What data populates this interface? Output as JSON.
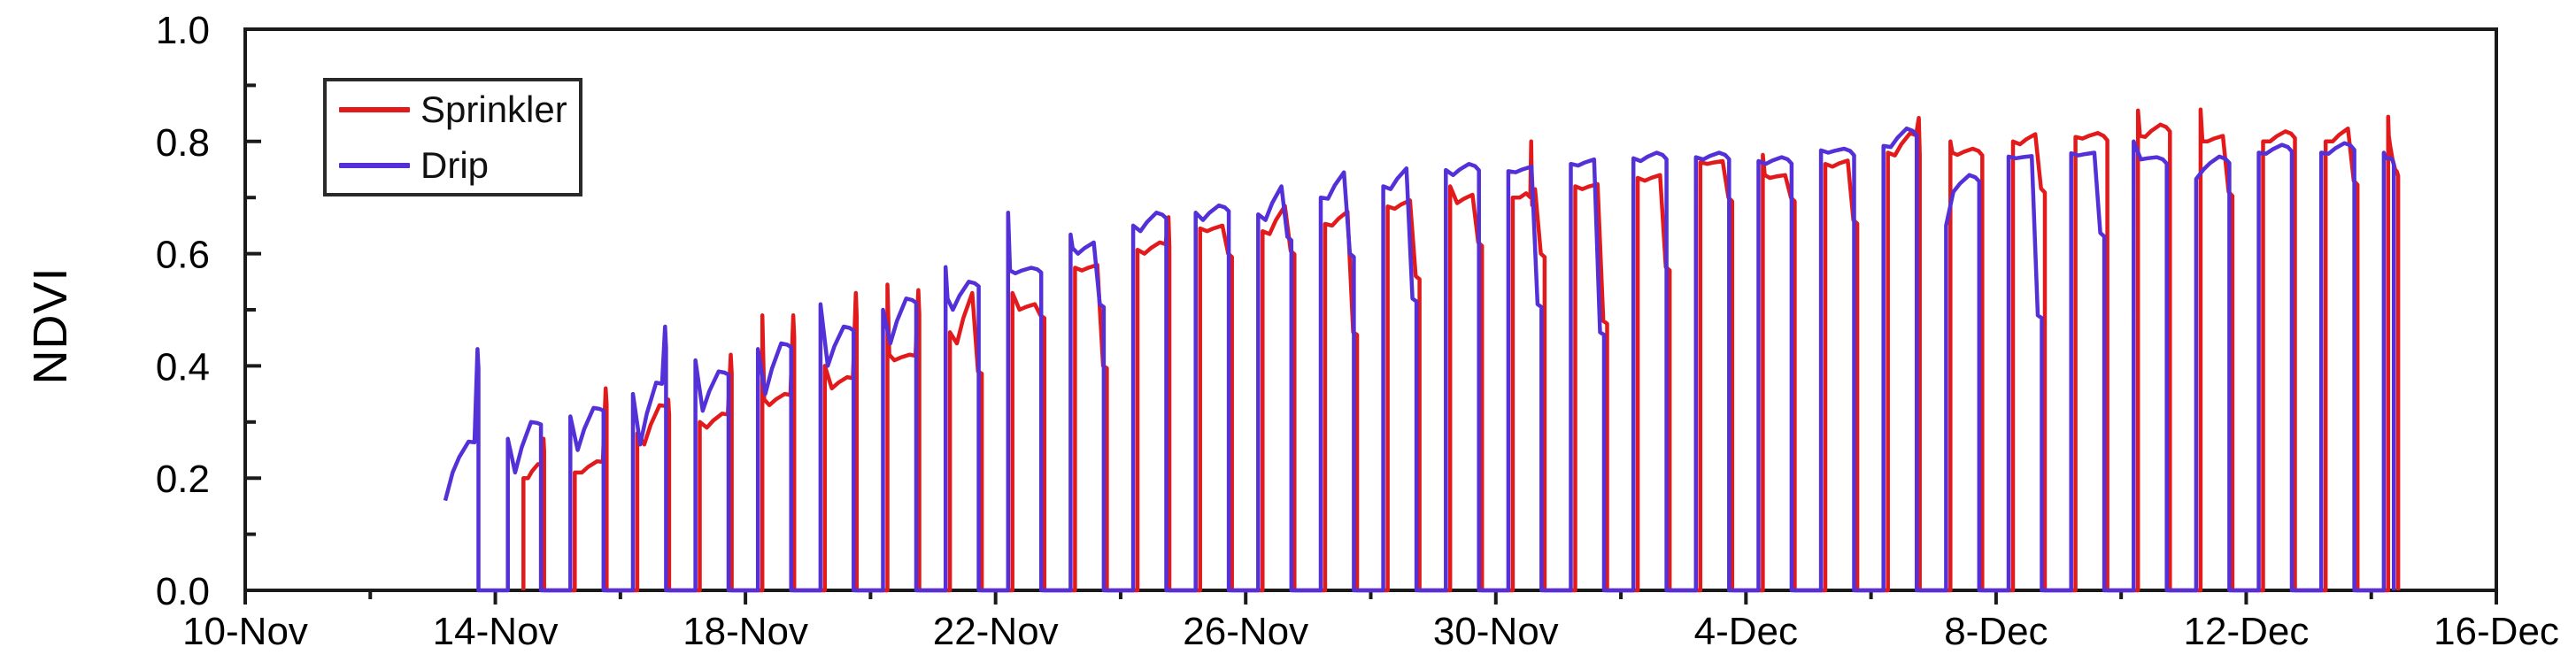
{
  "page": {
    "background": "#ffffff"
  },
  "chart_data": {
    "type": "line",
    "title": "",
    "xlabel": "",
    "ylabel": "NDVI",
    "ylim": [
      0.0,
      1.0
    ],
    "x_axis_days_total": 36,
    "grid": false,
    "legend_position": "top-left",
    "axis_color": "#1a1a1a",
    "tick_label_color": "#000000",
    "y_ticks": [
      {
        "label": "0.0",
        "v": 0.0
      },
      {
        "label": "0.2",
        "v": 0.2
      },
      {
        "label": "0.4",
        "v": 0.4
      },
      {
        "label": "0.6",
        "v": 0.6
      },
      {
        "label": "0.8",
        "v": 0.8
      },
      {
        "label": "1.0",
        "v": 1.0
      }
    ],
    "y_minor_ticks": [
      0.1,
      0.3,
      0.5,
      0.7,
      0.9
    ],
    "x_ticks": [
      {
        "label": "10-Nov",
        "day": 0
      },
      {
        "label": "14-Nov",
        "day": 4
      },
      {
        "label": "18-Nov",
        "day": 8
      },
      {
        "label": "22-Nov",
        "day": 12
      },
      {
        "label": "26-Nov",
        "day": 16
      },
      {
        "label": "30-Nov",
        "day": 20
      },
      {
        "label": "4-Dec",
        "day": 24
      },
      {
        "label": "8-Dec",
        "day": 28
      },
      {
        "label": "12-Dec",
        "day": 32
      },
      {
        "label": "16-Dec",
        "day": 36
      }
    ],
    "x_minor_tick_days": [
      2,
      6,
      10,
      14,
      18,
      22,
      26,
      30,
      34
    ],
    "series": [
      {
        "name": "Sprinkler",
        "color": "#e31a1c"
      },
      {
        "name": "Drip",
        "color": "#5430d8"
      }
    ],
    "days": [
      {
        "date": "13-Nov",
        "d": 3,
        "sprinkler": null,
        "drip": {
          "open": true,
          "start": 0.16,
          "dip": 0.21,
          "peak": 0.265,
          "spike_end": 0.43
        }
      },
      {
        "date": "14-Nov",
        "d": 4,
        "sprinkler": {
          "a_off": 0.45,
          "w": 0.33,
          "start": 0.2,
          "dip": 0.2,
          "peak": 0.225,
          "spike_end": 0.27
        },
        "drip": {
          "start": 0.27,
          "dip": 0.21,
          "peak": 0.3
        }
      },
      {
        "date": "15-Nov",
        "d": 5,
        "sprinkler": {
          "start": 0.21,
          "dip": 0.21,
          "peak": 0.23,
          "spike_end": 0.36
        },
        "drip": {
          "start": 0.31,
          "dip": 0.25,
          "peak": 0.325
        }
      },
      {
        "date": "16-Nov",
        "d": 6,
        "sprinkler": {
          "start": 0.28,
          "dip": 0.26,
          "peak": 0.33,
          "spike_end": 0.34
        },
        "drip": {
          "start": 0.35,
          "dip": 0.26,
          "peak": 0.37,
          "spike_end": 0.47
        }
      },
      {
        "date": "17-Nov",
        "d": 7,
        "sprinkler": {
          "start": 0.3,
          "dip": 0.29,
          "peak": 0.315,
          "spike_end": 0.42
        },
        "drip": {
          "start": 0.41,
          "dip": 0.32,
          "peak": 0.39
        }
      },
      {
        "date": "18-Nov",
        "d": 8,
        "sprinkler": {
          "spike_start": 0.49,
          "start": 0.34,
          "dip": 0.33,
          "peak": 0.35,
          "spike_end": 0.49
        },
        "drip": {
          "start": 0.43,
          "dip": 0.35,
          "peak": 0.44
        }
      },
      {
        "date": "19-Nov",
        "d": 9,
        "sprinkler": {
          "start": 0.4,
          "dip": 0.36,
          "peak": 0.38,
          "spike_end": 0.53
        },
        "drip": {
          "start": 0.51,
          "dip": 0.4,
          "peak": 0.47
        }
      },
      {
        "date": "20-Nov",
        "d": 10,
        "sprinkler": {
          "spike_start": 0.545,
          "start": 0.42,
          "dip": 0.41,
          "peak": 0.42,
          "spike_end": 0.535
        },
        "drip": {
          "start": 0.5,
          "dip": 0.44,
          "peak": 0.52
        }
      },
      {
        "date": "21-Nov",
        "d": 11,
        "sprinkler": {
          "start": 0.46,
          "dip": 0.44,
          "peak": 0.53,
          "end": 0.39
        },
        "drip": {
          "spike_start": 0.576,
          "start": 0.52,
          "dip": 0.5,
          "peak": 0.55
        }
      },
      {
        "date": "22-Nov",
        "d": 12,
        "sprinkler": {
          "start": 0.53,
          "dip": 0.5,
          "peak": 0.51,
          "end": 0.49
        },
        "drip": {
          "spike_start": 0.673,
          "start": 0.57,
          "dip": 0.565,
          "peak": 0.575
        }
      },
      {
        "date": "23-Nov",
        "d": 13,
        "sprinkler": {
          "start": 0.575,
          "dip": 0.57,
          "peak": 0.58,
          "end": 0.4
        },
        "drip": {
          "spike_start": 0.634,
          "start": 0.61,
          "dip": 0.6,
          "peak": 0.62,
          "end": 0.51
        }
      },
      {
        "date": "24-Nov",
        "d": 14,
        "sprinkler": {
          "start": 0.607,
          "dip": 0.6,
          "peak": 0.62,
          "spike_end": 0.665
        },
        "drip": {
          "start": 0.65,
          "dip": 0.64,
          "peak": 0.673
        }
      },
      {
        "date": "25-Nov",
        "d": 15,
        "sprinkler": {
          "start": 0.645,
          "dip": 0.64,
          "peak": 0.65,
          "end": 0.6
        },
        "drip": {
          "start": 0.673,
          "dip": 0.66,
          "peak": 0.686
        }
      },
      {
        "date": "26-Nov",
        "d": 16,
        "sprinkler": {
          "start": 0.64,
          "dip": 0.635,
          "peak": 0.685,
          "end": 0.605
        },
        "drip": {
          "start": 0.67,
          "dip": 0.66,
          "peak": 0.72,
          "end": 0.63
        }
      },
      {
        "date": "27-Nov",
        "d": 17,
        "sprinkler": {
          "start": 0.653,
          "dip": 0.65,
          "peak": 0.675,
          "end": 0.46
        },
        "drip": {
          "start": 0.7,
          "dip": 0.698,
          "peak": 0.745,
          "end": 0.6
        }
      },
      {
        "date": "28-Nov",
        "d": 18,
        "sprinkler": {
          "start": 0.684,
          "dip": 0.68,
          "peak": 0.695,
          "end": 0.56
        },
        "drip": {
          "start": 0.72,
          "dip": 0.715,
          "peak": 0.752,
          "end": 0.52
        }
      },
      {
        "date": "29-Nov",
        "d": 19,
        "sprinkler": {
          "start": 0.72,
          "dip": 0.69,
          "peak": 0.705,
          "end": 0.62
        },
        "drip": {
          "start": 0.749,
          "dip": 0.74,
          "peak": 0.76
        }
      },
      {
        "date": "30-Nov",
        "d": 20,
        "sprinkler": {
          "start": 0.7,
          "dip": 0.7,
          "peak": 0.715,
          "spike_mid": 0.8,
          "end": 0.6
        },
        "drip": {
          "start": 0.747,
          "dip": 0.745,
          "peak": 0.755,
          "end": 0.51
        }
      },
      {
        "date": "1-Dec",
        "d": 21,
        "sprinkler": {
          "start": 0.72,
          "dip": 0.715,
          "peak": 0.724,
          "end": 0.48
        },
        "drip": {
          "start": 0.76,
          "dip": 0.757,
          "peak": 0.768,
          "end": 0.46
        }
      },
      {
        "date": "2-Dec",
        "d": 22,
        "sprinkler": {
          "start": 0.735,
          "dip": 0.73,
          "peak": 0.74,
          "end": 0.576
        },
        "drip": {
          "start": 0.77,
          "dip": 0.765,
          "peak": 0.78
        }
      },
      {
        "date": "3-Dec",
        "d": 23,
        "sprinkler": {
          "start": 0.763,
          "dip": 0.76,
          "peak": 0.765,
          "end": 0.7
        },
        "drip": {
          "start": 0.772,
          "dip": 0.768,
          "peak": 0.78
        }
      },
      {
        "date": "4-Dec",
        "d": 24,
        "sprinkler": {
          "spike_start": 0.776,
          "start": 0.74,
          "dip": 0.735,
          "peak": 0.74,
          "end": 0.7
        },
        "drip": {
          "start": 0.765,
          "dip": 0.76,
          "peak": 0.772
        }
      },
      {
        "date": "5-Dec",
        "d": 25,
        "sprinkler": {
          "start": 0.76,
          "dip": 0.755,
          "peak": 0.766,
          "end": 0.66
        },
        "drip": {
          "start": 0.784,
          "dip": 0.78,
          "peak": 0.787
        }
      },
      {
        "date": "6-Dec",
        "d": 26,
        "sprinkler": {
          "start": 0.78,
          "dip": 0.775,
          "peak": 0.815,
          "spike_end": 0.842
        },
        "drip": {
          "start": 0.792,
          "dip": 0.79,
          "peak": 0.823
        }
      },
      {
        "date": "7-Dec",
        "d": 27,
        "sprinkler": {
          "spike_start": 0.8,
          "start": 0.78,
          "dip": 0.776,
          "peak": 0.787
        },
        "drip": {
          "start": 0.65,
          "dip": 0.71,
          "peak": 0.74
        }
      },
      {
        "date": "8-Dec",
        "d": 28,
        "sprinkler": {
          "start": 0.8,
          "dip": 0.795,
          "peak": 0.813,
          "end": 0.716
        },
        "drip": {
          "start": 0.773,
          "dip": 0.77,
          "peak": 0.774,
          "end": 0.49
        }
      },
      {
        "date": "9-Dec",
        "d": 29,
        "sprinkler": {
          "start": 0.808,
          "dip": 0.805,
          "peak": 0.815,
          "end": 0.81
        },
        "drip": {
          "start": 0.779,
          "dip": 0.775,
          "peak": 0.78,
          "end": 0.637
        }
      },
      {
        "date": "10-Dec",
        "d": 30,
        "sprinkler": {
          "spike_start": 0.855,
          "start": 0.81,
          "dip": 0.808,
          "peak": 0.83
        },
        "drip": {
          "start": 0.8,
          "dip": 0.768,
          "peak": 0.772
        }
      },
      {
        "date": "11-Dec",
        "d": 31,
        "sprinkler": {
          "spike_start": 0.857,
          "start": 0.8,
          "dip": 0.8,
          "peak": 0.81,
          "end": 0.71
        },
        "drip": {
          "start": 0.733,
          "dip": 0.75,
          "peak": 0.773
        }
      },
      {
        "date": "12-Dec",
        "d": 32,
        "sprinkler": {
          "start": 0.8,
          "dip": 0.8,
          "peak": 0.818
        },
        "drip": {
          "start": 0.78,
          "dip": 0.778,
          "peak": 0.794
        }
      },
      {
        "date": "13-Dec",
        "d": 33,
        "sprinkler": {
          "start": 0.8,
          "dip": 0.8,
          "peak": 0.823,
          "end": 0.73
        },
        "drip": {
          "start": 0.78,
          "dip": 0.778,
          "peak": 0.797
        }
      },
      {
        "date": "14-Dec",
        "d": 34,
        "sprinkler": {
          "spike_start": 0.844,
          "start": 0.81,
          "dip": 0.79,
          "peak": 0.75,
          "w": 0.16
        },
        "drip": {
          "start": 0.78,
          "dip": 0.77,
          "peak": 0.77,
          "w": 0.16
        }
      }
    ]
  }
}
